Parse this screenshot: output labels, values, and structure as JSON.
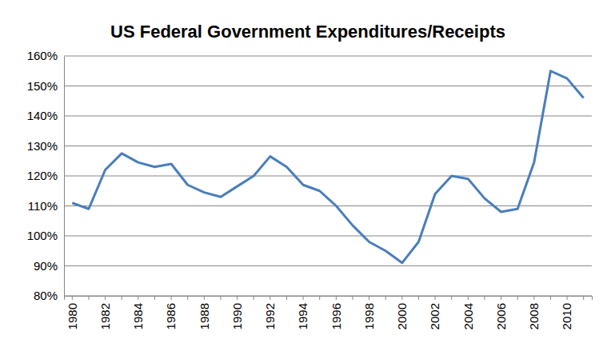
{
  "chart_data": {
    "type": "line",
    "title": "US Federal Government Expenditures/Receipts",
    "categories": [
      "1980",
      null,
      "1982",
      null,
      "1984",
      null,
      "1986",
      null,
      "1988",
      null,
      "1990",
      null,
      "1992",
      null,
      "1994",
      null,
      "1996",
      null,
      "1998",
      null,
      "2000",
      null,
      "2002",
      null,
      "2004",
      null,
      "2006",
      null,
      "2008",
      null,
      "2010",
      null
    ],
    "values": [
      111,
      109,
      122,
      127.5,
      124.5,
      123,
      124,
      117,
      114.5,
      113,
      116.5,
      120,
      126.5,
      123,
      117,
      115,
      110,
      103.5,
      98,
      95,
      91,
      98,
      114,
      120,
      119,
      112.5,
      108,
      109,
      124.5,
      155,
      152.5,
      146
    ],
    "color": "#4a7ebb",
    "ylim": [
      80,
      160
    ],
    "yticks": [
      {
        "value": 80,
        "label": "80%"
      },
      {
        "value": 90,
        "label": "90%"
      },
      {
        "value": 100,
        "label": "100%"
      },
      {
        "value": 110,
        "label": "110%"
      },
      {
        "value": 120,
        "label": "120%"
      },
      {
        "value": 130,
        "label": "130%"
      },
      {
        "value": 140,
        "label": "140%"
      },
      {
        "value": 150,
        "label": "150%"
      },
      {
        "value": 160,
        "label": "160%"
      }
    ],
    "grid": true
  }
}
